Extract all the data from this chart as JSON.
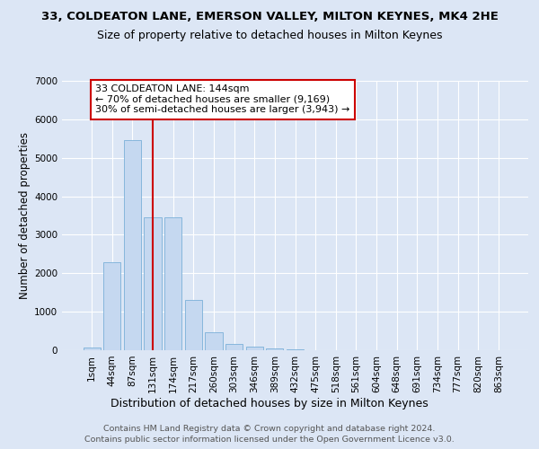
{
  "title": "33, COLDEATON LANE, EMERSON VALLEY, MILTON KEYNES, MK4 2HE",
  "subtitle": "Size of property relative to detached houses in Milton Keynes",
  "xlabel": "Distribution of detached houses by size in Milton Keynes",
  "ylabel": "Number of detached properties",
  "footer1": "Contains HM Land Registry data © Crown copyright and database right 2024.",
  "footer2": "Contains public sector information licensed under the Open Government Licence v3.0.",
  "bar_labels": [
    "1sqm",
    "44sqm",
    "87sqm",
    "131sqm",
    "174sqm",
    "217sqm",
    "260sqm",
    "303sqm",
    "346sqm",
    "389sqm",
    "432sqm",
    "475sqm",
    "518sqm",
    "561sqm",
    "604sqm",
    "648sqm",
    "691sqm",
    "734sqm",
    "777sqm",
    "820sqm",
    "863sqm"
  ],
  "bar_values": [
    80,
    2280,
    5470,
    3450,
    3450,
    1310,
    470,
    155,
    90,
    55,
    30,
    5,
    0,
    0,
    0,
    0,
    0,
    0,
    0,
    0,
    0
  ],
  "bar_color": "#c5d8f0",
  "bar_edge_color": "#7ab0d8",
  "vline_x": 3,
  "vline_color": "#cc0000",
  "annotation_text": "33 COLDEATON LANE: 144sqm\n← 70% of detached houses are smaller (9,169)\n30% of semi-detached houses are larger (3,943) →",
  "annotation_box_edgecolor": "#cc0000",
  "annotation_bg": "white",
  "ylim_max": 7000,
  "yticks": [
    0,
    1000,
    2000,
    3000,
    4000,
    5000,
    6000,
    7000
  ],
  "bg_color": "#dce6f5",
  "grid_color": "#ffffff",
  "title_fontsize": 9.5,
  "subtitle_fontsize": 9.0,
  "ylabel_fontsize": 8.5,
  "xlabel_fontsize": 9.0,
  "tick_fontsize": 7.5,
  "annotation_fontsize": 8.0,
  "footer_fontsize": 6.8
}
